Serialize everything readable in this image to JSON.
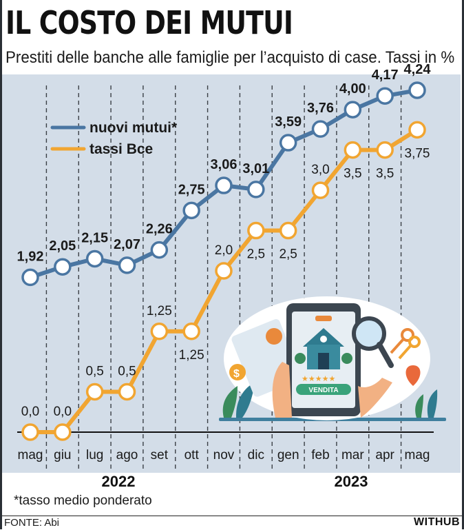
{
  "title": "IL COSTO DEI MUTUI",
  "subtitle": "Prestiti delle banche alle famiglie per l’acquisto di case. Tassi in %",
  "footnote": "*tasso medio ponderato",
  "source": "FONTE: Abi",
  "brand": "WITHUB",
  "colors": {
    "blue": "#4a76a2",
    "orange": "#f1a531",
    "background": "#d3dde8"
  },
  "illustration": "tablet-house-vendita-illustration",
  "illustration_text": {
    "badge": "VENDITA"
  },
  "chart_data": {
    "type": "line",
    "categories": [
      "mag",
      "giu",
      "lug",
      "ago",
      "set",
      "ott",
      "nov",
      "dic",
      "gen",
      "feb",
      "mar",
      "apr",
      "mag"
    ],
    "year_labels": [
      "2022",
      "2023"
    ],
    "series": [
      {
        "name": "nuovi mutui*",
        "color": "#4a76a2",
        "values": [
          1.92,
          2.05,
          2.15,
          2.07,
          2.26,
          2.75,
          3.06,
          3.01,
          3.59,
          3.76,
          4.0,
          4.17,
          4.24
        ],
        "labels": [
          "1,92",
          "2,05",
          "2,15",
          "2,07",
          "2,26",
          "2,75",
          "3,06",
          "3,01",
          "3,59",
          "3,76",
          "4,00",
          "4,17",
          "4,24"
        ]
      },
      {
        "name": "tassi Bce",
        "color": "#f1a531",
        "values": [
          0.0,
          0.0,
          0.5,
          0.5,
          1.25,
          1.25,
          2.0,
          2.5,
          2.5,
          3.0,
          3.5,
          3.5,
          3.75
        ],
        "labels": [
          "0,0",
          "0,0",
          "0,5",
          "0,5",
          "1,25",
          "1,25",
          "2,0",
          "2,5",
          "2,5",
          "3,0",
          "3,5",
          "3,5",
          "3,75"
        ]
      }
    ],
    "ylim": [
      0,
      4.3
    ],
    "grid": "vertical dashed",
    "legend": "top-left"
  }
}
